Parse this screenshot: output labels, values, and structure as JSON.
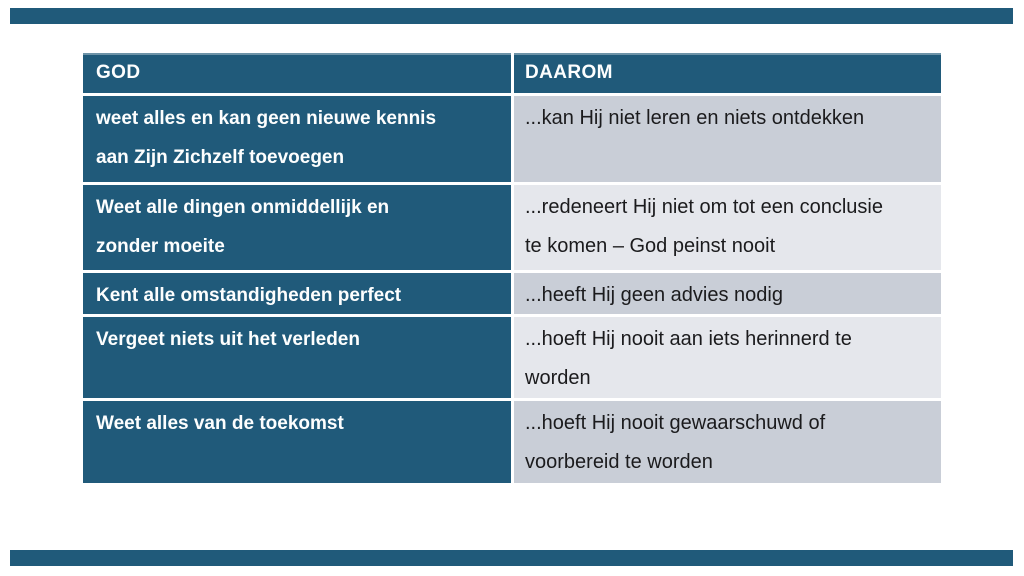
{
  "slide": {
    "kind": "table-slide",
    "background": "#FFFFFF"
  },
  "colors": {
    "accent_teal": "#205A7A",
    "row_gray": "#C9CED7",
    "row_light_gray": "#E5E7EC",
    "left_text": "#FDFEFE",
    "right_text": "#1B1B1D"
  },
  "table": {
    "columns": [
      {
        "header": "GOD"
      },
      {
        "header": "DAAROM"
      }
    ],
    "rows": [
      {
        "left": "weet alles en kan geen nieuwe kennis\naan Zijn Zichzelf toevoegen",
        "right": "...kan Hij niet leren en niets ontdekken"
      },
      {
        "left": "Weet alle dingen onmiddellijk en\nzonder moeite",
        "right": "...redeneert Hij niet om tot een conclusie\nte komen – God peinst nooit"
      },
      {
        "left": "Kent alle omstandigheden perfect",
        "right": "...heeft Hij geen advies nodig"
      },
      {
        "left": "Vergeet niets uit het verleden",
        "right": "...hoeft Hij nooit aan iets herinnerd te\nworden"
      },
      {
        "left": "Weet alles van de toekomst",
        "right": "...hoeft Hij nooit gewaarschuwd of\nvoorbereid te worden"
      }
    ]
  }
}
